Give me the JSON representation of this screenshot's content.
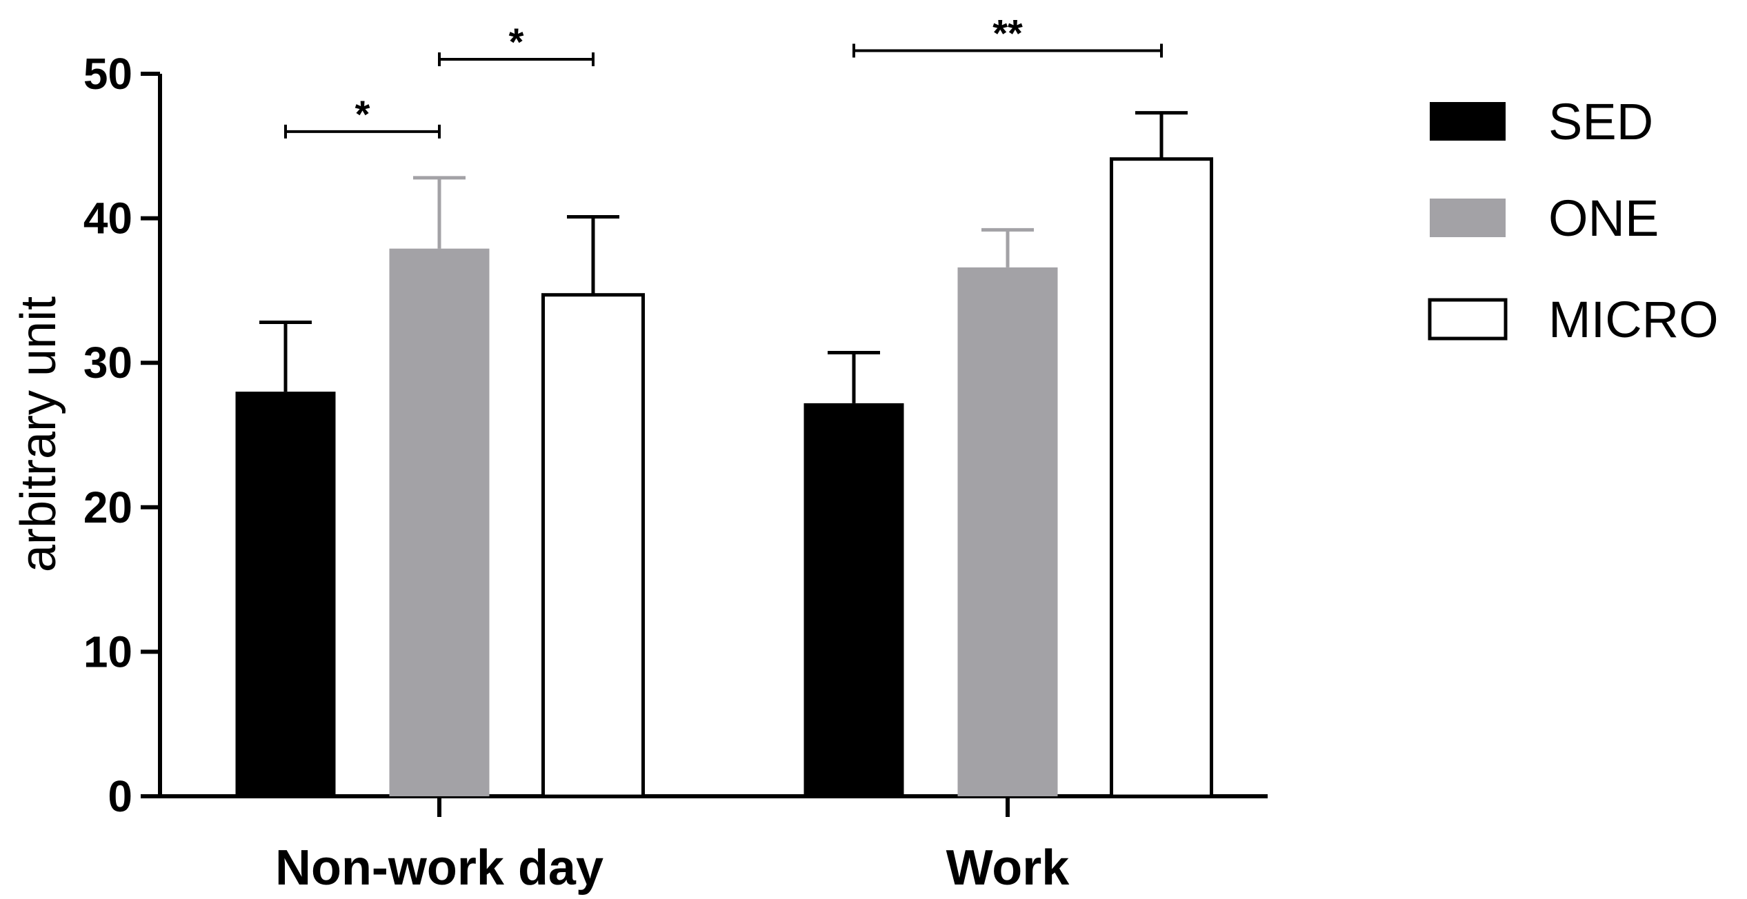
{
  "chart_data": {
    "type": "bar",
    "ylabel": "arbitrary unit",
    "ylim": [
      0,
      50
    ],
    "yticks": [
      0,
      10,
      20,
      30,
      40,
      50
    ],
    "categories": [
      "Non-work day",
      "Work"
    ],
    "series": [
      {
        "name": "SED",
        "color": "#000000",
        "values": [
          28,
          27.2
        ],
        "errors": [
          4.8,
          3.5
        ]
      },
      {
        "name": "ONE",
        "color": "#a3a2a6",
        "values": [
          37.9,
          36.6
        ],
        "errors": [
          4.9,
          2.6
        ]
      },
      {
        "name": "MICRO",
        "color": "#ffffff",
        "values": [
          34.7,
          44.1
        ],
        "errors": [
          5.4,
          3.2
        ]
      }
    ],
    "legend_position": "right",
    "significance": [
      {
        "category": 0,
        "from_series": 0,
        "to_series": 1,
        "y": 46,
        "label": "*"
      },
      {
        "category": 0,
        "from_series": 1,
        "to_series": 2,
        "y": 51,
        "label": "*"
      },
      {
        "category": 1,
        "from_series": 0,
        "to_series": 2,
        "y": 51.6,
        "label": "**"
      }
    ]
  }
}
